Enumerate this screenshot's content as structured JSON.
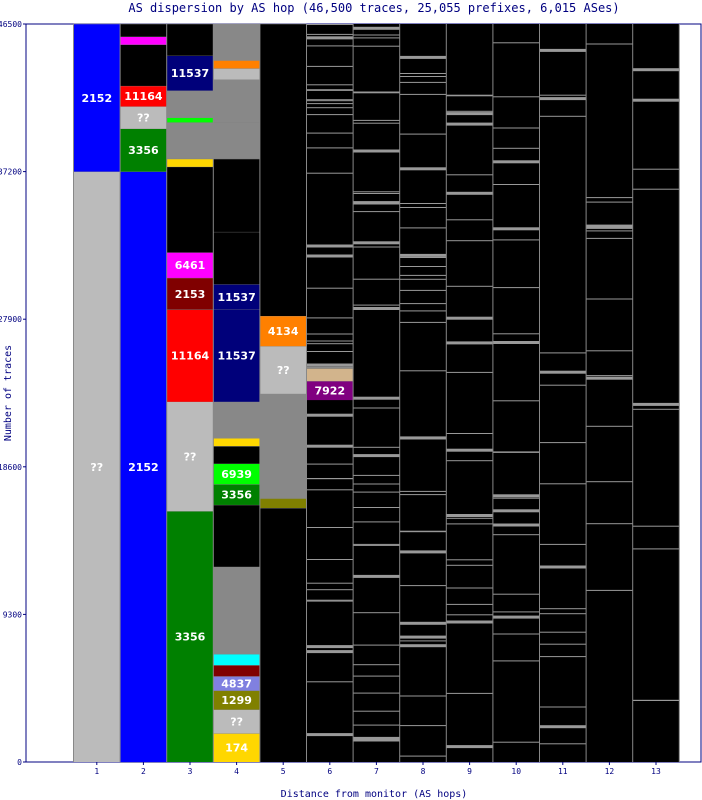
{
  "chart_data": {
    "type": "bar",
    "title": "AS dispersion by AS hop (46,500 traces, 25,055 prefixes, 6,015 ASes)",
    "xlabel": "Distance from monitor (AS hops)",
    "ylabel": "Number of traces",
    "x_ticks": [
      "1",
      "2",
      "3",
      "4",
      "5",
      "6",
      "7",
      "8",
      "9",
      "10",
      "11",
      "12",
      "13"
    ],
    "y_ticks": [
      0,
      9300,
      18600,
      27900,
      37200,
      46500
    ],
    "ylim": [
      0,
      46500
    ],
    "colors": {
      "axis": "#000080",
      "grey": "#bbbbbb",
      "dark": "#000000",
      "blue": "#0000ff",
      "green": "#008000",
      "red": "#ff0000",
      "navy": "#00007a",
      "magenta": "#ff00ff",
      "maroon": "#800000",
      "orange": "#ff8000",
      "purple": "#800080",
      "lime": "#00ff00",
      "cyan": "#00ffff",
      "periwinkle": "#8080e0",
      "olive": "#808000",
      "gold": "#ffd700",
      "tan": "#d2b48c",
      "midgrey": "#888888",
      "lines": "#999999"
    },
    "columns": [
      {
        "x": "1",
        "segments": [
          {
            "label": "??",
            "from": 0,
            "to": 37200,
            "color": "grey"
          },
          {
            "label": "2152",
            "from": 37200,
            "to": 46500,
            "color": "blue"
          }
        ]
      },
      {
        "x": "2",
        "segments": [
          {
            "label": "2152",
            "from": 0,
            "to": 37200,
            "color": "blue"
          },
          {
            "label": "3356",
            "from": 37200,
            "to": 39900,
            "color": "green"
          },
          {
            "label": "??",
            "from": 39900,
            "to": 41300,
            "color": "grey"
          },
          {
            "label": "11164",
            "from": 41300,
            "to": 42600,
            "color": "red"
          },
          {
            "label": "",
            "from": 42600,
            "to": 45200,
            "color": "dark"
          },
          {
            "label": "",
            "from": 45200,
            "to": 45700,
            "color": "magenta"
          },
          {
            "label": "",
            "from": 45700,
            "to": 46500,
            "color": "dark"
          }
        ]
      },
      {
        "x": "3",
        "segments": [
          {
            "label": "3356",
            "from": 0,
            "to": 15800,
            "color": "green"
          },
          {
            "label": "??",
            "from": 15800,
            "to": 22700,
            "color": "grey"
          },
          {
            "label": "11164",
            "from": 22700,
            "to": 28500,
            "color": "red"
          },
          {
            "label": "2153",
            "from": 28500,
            "to": 30500,
            "color": "maroon"
          },
          {
            "label": "6461",
            "from": 30500,
            "to": 32100,
            "color": "magenta"
          },
          {
            "label": "",
            "from": 32100,
            "to": 37500,
            "color": "dark"
          },
          {
            "label": "",
            "from": 37500,
            "to": 38000,
            "color": "gold"
          },
          {
            "label": "",
            "from": 38000,
            "to": 40300,
            "color": "midgrey"
          },
          {
            "label": "",
            "from": 40300,
            "to": 40600,
            "color": "lime"
          },
          {
            "label": "",
            "from": 40600,
            "to": 42300,
            "color": "midgrey"
          },
          {
            "label": "11537",
            "from": 42300,
            "to": 44500,
            "color": "navy"
          },
          {
            "label": "",
            "from": 44500,
            "to": 46500,
            "color": "dark"
          }
        ]
      },
      {
        "x": "4",
        "segments": [
          {
            "label": "174",
            "from": 0,
            "to": 1800,
            "color": "gold"
          },
          {
            "label": "??",
            "from": 1800,
            "to": 3300,
            "color": "grey"
          },
          {
            "label": "1299",
            "from": 3300,
            "to": 4500,
            "color": "olive"
          },
          {
            "label": "4837",
            "from": 4500,
            "to": 5400,
            "color": "periwinkle"
          },
          {
            "label": "",
            "from": 5400,
            "to": 6100,
            "color": "maroon"
          },
          {
            "label": "",
            "from": 6100,
            "to": 6800,
            "color": "cyan"
          },
          {
            "label": "",
            "from": 6800,
            "to": 12300,
            "color": "midgrey"
          },
          {
            "label": "",
            "from": 12300,
            "to": 16200,
            "color": "dark"
          },
          {
            "label": "3356",
            "from": 16200,
            "to": 17500,
            "color": "green"
          },
          {
            "label": "6939",
            "from": 17500,
            "to": 18800,
            "color": "lime"
          },
          {
            "label": "",
            "from": 18800,
            "to": 19900,
            "color": "dark"
          },
          {
            "label": "",
            "from": 19900,
            "to": 20400,
            "color": "gold"
          },
          {
            "label": "",
            "from": 20400,
            "to": 22700,
            "color": "midgrey"
          },
          {
            "label": "11537",
            "from": 22700,
            "to": 28500,
            "color": "navy"
          },
          {
            "label": "11537",
            "from": 28500,
            "to": 30100,
            "color": "navy"
          },
          {
            "label": "",
            "from": 30100,
            "to": 33400,
            "color": "dark"
          },
          {
            "label": "",
            "from": 33400,
            "to": 38000,
            "color": "dark"
          },
          {
            "label": "",
            "from": 38000,
            "to": 40300,
            "color": "midgrey"
          },
          {
            "label": "",
            "from": 40300,
            "to": 43000,
            "color": "midgrey"
          },
          {
            "label": "",
            "from": 43000,
            "to": 43700,
            "color": "grey"
          },
          {
            "label": "",
            "from": 43700,
            "to": 44200,
            "color": "orange"
          },
          {
            "label": "",
            "from": 44200,
            "to": 46500,
            "color": "midgrey"
          }
        ]
      },
      {
        "x": "5",
        "segments": [
          {
            "label": "",
            "from": 0,
            "to": 16000,
            "color": "dark"
          },
          {
            "label": "",
            "from": 16000,
            "to": 16600,
            "color": "olive"
          },
          {
            "label": "",
            "from": 16600,
            "to": 23200,
            "color": "midgrey"
          },
          {
            "label": "??",
            "from": 23200,
            "to": 26200,
            "color": "grey"
          },
          {
            "label": "4134",
            "from": 26200,
            "to": 28100,
            "color": "orange"
          },
          {
            "label": "",
            "from": 28100,
            "to": 46500,
            "color": "dark"
          }
        ]
      },
      {
        "x": "6",
        "segments": [
          {
            "label": "7922",
            "from": 22800,
            "to": 24000,
            "color": "purple"
          },
          {
            "label": "",
            "from": 24000,
            "to": 24800,
            "color": "tan"
          }
        ]
      },
      {
        "x": "7",
        "segments": []
      },
      {
        "x": "8",
        "segments": []
      },
      {
        "x": "9",
        "segments": []
      },
      {
        "x": "10",
        "segments": []
      },
      {
        "x": "11",
        "segments": []
      },
      {
        "x": "12",
        "segments": []
      },
      {
        "x": "13",
        "segments": []
      }
    ]
  }
}
